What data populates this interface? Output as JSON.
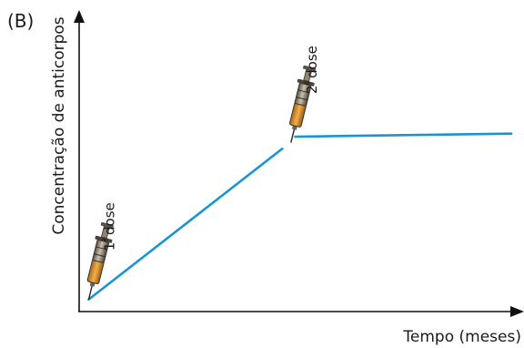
{
  "chart_data": {
    "type": "line",
    "panel_label": "(B)",
    "title": "",
    "xlabel": "Tempo (meses)",
    "ylabel": "Concentração de anticorpos",
    "grid": false,
    "legend": "none",
    "xlim": [
      0,
      10
    ],
    "ylim": [
      0,
      10
    ],
    "series": [
      {
        "color": "#1a94d1",
        "segments": [
          [
            [
              0.22,
              0.4
            ],
            [
              4.7,
              5.4
            ]
          ],
          [
            [
              5.0,
              5.8
            ],
            [
              10.0,
              5.9
            ]
          ]
        ]
      }
    ],
    "annotations": [
      {
        "icon": "syringe-icon",
        "dose_number": "1",
        "ordinal": "ª",
        "word": "dose",
        "x": 0.22,
        "y": 0.4
      },
      {
        "icon": "syringe-icon",
        "dose_number": "2",
        "ordinal": "ª",
        "word": "dose",
        "x": 4.9,
        "y": 5.6
      }
    ]
  }
}
